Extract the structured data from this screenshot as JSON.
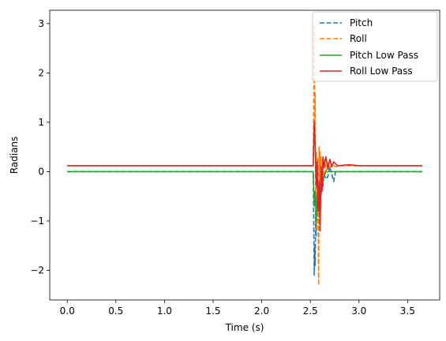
{
  "chart_data": {
    "type": "line",
    "title": "",
    "xlabel": "Time (s)",
    "ylabel": "Radians",
    "xlim": [
      -0.18,
      3.83
    ],
    "ylim": [
      -2.6,
      3.27
    ],
    "xticks": [
      0.0,
      0.5,
      1.0,
      1.5,
      2.0,
      2.5,
      3.0,
      3.5
    ],
    "xtick_labels": [
      "0.0",
      "0.5",
      "1.0",
      "1.5",
      "2.0",
      "2.5",
      "3.0",
      "3.5"
    ],
    "yticks": [
      -2,
      -1,
      0,
      1,
      2,
      3
    ],
    "ytick_labels": [
      "−2",
      "−1",
      "0",
      "1",
      "2",
      "3"
    ],
    "grid": false,
    "legend_position": "top-right",
    "series": [
      {
        "name": "Pitch",
        "color": "#1f77b4",
        "style": "dashed",
        "x": [
          0.0,
          0.5,
          1.0,
          1.5,
          2.0,
          2.5,
          2.53,
          2.535,
          2.54,
          2.545,
          2.55,
          2.555,
          2.56,
          2.565,
          2.57,
          2.58,
          2.59,
          2.6,
          2.61,
          2.62,
          2.63,
          2.64,
          2.66,
          2.68,
          2.7,
          2.72,
          2.74,
          2.76,
          2.8,
          3.0,
          3.2,
          3.4,
          3.65
        ],
        "y": [
          0.0,
          0.0,
          0.0,
          0.0,
          0.0,
          0.0,
          0.0,
          -1.0,
          -2.1,
          -1.5,
          -1.9,
          -0.8,
          -1.3,
          -0.5,
          -0.9,
          -0.3,
          -0.8,
          -0.2,
          -0.5,
          -0.1,
          -0.3,
          -0.05,
          -0.15,
          -0.1,
          0.1,
          -0.05,
          -0.2,
          0.0,
          0.0,
          0.0,
          0.0,
          0.0,
          0.0
        ]
      },
      {
        "name": "Roll",
        "color": "#ff7f0e",
        "style": "dashed",
        "x": [
          0.0,
          0.5,
          1.0,
          1.5,
          2.0,
          2.5,
          2.53,
          2.535,
          2.54,
          2.545,
          2.55,
          2.555,
          2.56,
          2.565,
          2.57,
          2.575,
          2.58,
          2.585,
          2.59,
          2.595,
          2.6,
          2.605,
          2.61,
          2.62,
          2.63,
          2.64,
          2.65,
          2.66,
          2.68,
          2.7,
          2.72,
          2.76,
          2.8,
          3.0,
          3.2,
          3.4,
          3.65
        ],
        "y": [
          0.12,
          0.12,
          0.12,
          0.12,
          0.12,
          0.12,
          0.12,
          1.5,
          3.0,
          0.8,
          1.6,
          -0.5,
          0.4,
          -1.2,
          -0.6,
          0.3,
          -0.9,
          -2.3,
          0.5,
          -0.3,
          0.4,
          -0.6,
          0.3,
          -0.2,
          0.3,
          -0.1,
          0.25,
          0.0,
          0.2,
          0.05,
          0.15,
          0.1,
          0.12,
          0.12,
          0.12,
          0.12,
          0.12
        ]
      },
      {
        "name": "Pitch Low Pass",
        "color": "#2ca02c",
        "style": "solid",
        "x": [
          0.0,
          0.5,
          1.0,
          1.5,
          2.0,
          2.5,
          2.53,
          2.54,
          2.55,
          2.56,
          2.57,
          2.58,
          2.59,
          2.6,
          2.61,
          2.62,
          2.64,
          2.66,
          2.7,
          2.75,
          2.8,
          3.0,
          3.2,
          3.4,
          3.65
        ],
        "y": [
          0.0,
          0.0,
          0.0,
          0.0,
          0.0,
          0.0,
          0.0,
          -0.7,
          -0.4,
          -1.0,
          -0.5,
          -0.8,
          -0.3,
          -1.0,
          -0.2,
          -0.3,
          -0.1,
          0.0,
          0.0,
          0.0,
          0.0,
          0.0,
          0.0,
          0.0,
          0.0
        ]
      },
      {
        "name": "Roll Low Pass",
        "color": "#d62728",
        "style": "solid",
        "x": [
          0.0,
          0.5,
          1.0,
          1.5,
          2.0,
          2.5,
          2.53,
          2.54,
          2.55,
          2.56,
          2.57,
          2.58,
          2.59,
          2.6,
          2.61,
          2.62,
          2.63,
          2.64,
          2.66,
          2.68,
          2.7,
          2.72,
          2.74,
          2.78,
          2.84,
          2.9,
          3.0,
          3.2,
          3.4,
          3.65
        ],
        "y": [
          0.12,
          0.12,
          0.12,
          0.12,
          0.12,
          0.12,
          0.12,
          1.0,
          0.5,
          -0.3,
          0.2,
          -0.8,
          -0.2,
          -1.2,
          0.1,
          -0.4,
          0.3,
          0.1,
          0.3,
          0.05,
          0.25,
          0.1,
          0.2,
          0.12,
          0.13,
          0.14,
          0.12,
          0.12,
          0.12,
          0.12
        ]
      }
    ]
  }
}
